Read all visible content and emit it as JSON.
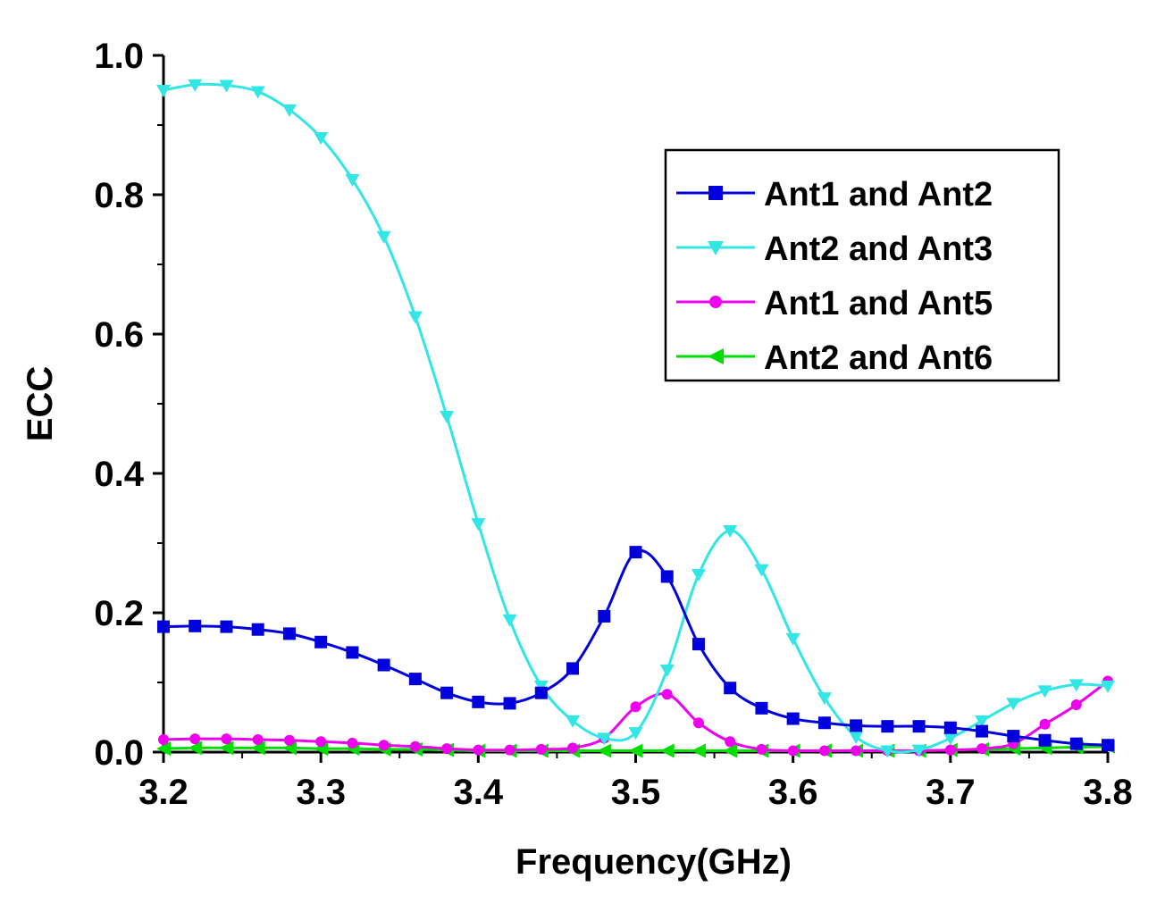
{
  "chart_data": {
    "type": "line",
    "title": "",
    "xlabel": "Frequency(GHz)",
    "ylabel": "ECC",
    "xlim": [
      3.2,
      3.8
    ],
    "ylim": [
      0.0,
      1.0
    ],
    "x_ticks": [
      "3.2",
      "3.3",
      "3.4",
      "3.5",
      "3.6",
      "3.7",
      "3.8"
    ],
    "y_ticks": [
      "0.0",
      "0.2",
      "0.4",
      "0.6",
      "0.8",
      "1.0"
    ],
    "grid": false,
    "legend_position": "top-right",
    "series": [
      {
        "name": "Ant1 and Ant2",
        "color": "#0000dd",
        "marker": "square",
        "x": [
          3.2,
          3.22,
          3.24,
          3.26,
          3.28,
          3.3,
          3.32,
          3.34,
          3.36,
          3.38,
          3.4,
          3.42,
          3.44,
          3.46,
          3.48,
          3.5,
          3.52,
          3.54,
          3.56,
          3.58,
          3.6,
          3.62,
          3.64,
          3.66,
          3.68,
          3.7,
          3.72,
          3.74,
          3.76,
          3.78,
          3.8
        ],
        "values": [
          0.18,
          0.181,
          0.18,
          0.176,
          0.17,
          0.158,
          0.143,
          0.125,
          0.105,
          0.085,
          0.072,
          0.07,
          0.085,
          0.12,
          0.195,
          0.287,
          0.252,
          0.155,
          0.092,
          0.063,
          0.048,
          0.042,
          0.038,
          0.037,
          0.037,
          0.035,
          0.03,
          0.023,
          0.017,
          0.012,
          0.01
        ]
      },
      {
        "name": "Ant2 and Ant3",
        "color": "#33e6e6",
        "marker": "triangle-down",
        "x": [
          3.2,
          3.22,
          3.24,
          3.26,
          3.28,
          3.3,
          3.32,
          3.34,
          3.36,
          3.38,
          3.4,
          3.42,
          3.44,
          3.46,
          3.48,
          3.5,
          3.52,
          3.54,
          3.56,
          3.58,
          3.6,
          3.62,
          3.64,
          3.66,
          3.68,
          3.7,
          3.72,
          3.74,
          3.76,
          3.78,
          3.8
        ],
        "values": [
          0.95,
          0.958,
          0.957,
          0.948,
          0.922,
          0.882,
          0.822,
          0.74,
          0.625,
          0.482,
          0.328,
          0.19,
          0.095,
          0.045,
          0.02,
          0.028,
          0.118,
          0.255,
          0.318,
          0.262,
          0.163,
          0.078,
          0.022,
          0.002,
          0.003,
          0.02,
          0.045,
          0.07,
          0.088,
          0.097,
          0.095
        ]
      },
      {
        "name": "Ant1 and Ant5",
        "color": "#ee00ee",
        "marker": "circle",
        "x": [
          3.2,
          3.22,
          3.24,
          3.26,
          3.28,
          3.3,
          3.32,
          3.34,
          3.36,
          3.38,
          3.4,
          3.42,
          3.44,
          3.46,
          3.48,
          3.5,
          3.52,
          3.54,
          3.56,
          3.58,
          3.6,
          3.62,
          3.64,
          3.66,
          3.68,
          3.7,
          3.72,
          3.74,
          3.76,
          3.78,
          3.8
        ],
        "values": [
          0.018,
          0.019,
          0.019,
          0.018,
          0.017,
          0.015,
          0.013,
          0.01,
          0.008,
          0.005,
          0.003,
          0.003,
          0.004,
          0.006,
          0.02,
          0.065,
          0.083,
          0.042,
          0.015,
          0.004,
          0.002,
          0.002,
          0.002,
          0.002,
          0.002,
          0.003,
          0.005,
          0.012,
          0.04,
          0.068,
          0.102
        ]
      },
      {
        "name": "Ant2 and Ant6",
        "color": "#00dd00",
        "marker": "triangle-left",
        "x": [
          3.2,
          3.22,
          3.24,
          3.26,
          3.28,
          3.3,
          3.32,
          3.34,
          3.36,
          3.38,
          3.4,
          3.42,
          3.44,
          3.46,
          3.48,
          3.5,
          3.52,
          3.54,
          3.56,
          3.58,
          3.6,
          3.62,
          3.64,
          3.66,
          3.68,
          3.7,
          3.72,
          3.74,
          3.76,
          3.78,
          3.8
        ],
        "values": [
          0.005,
          0.006,
          0.006,
          0.006,
          0.006,
          0.005,
          0.005,
          0.004,
          0.004,
          0.003,
          0.002,
          0.002,
          0.002,
          0.002,
          0.002,
          0.002,
          0.002,
          0.002,
          0.002,
          0.002,
          0.002,
          0.002,
          0.002,
          0.002,
          0.002,
          0.003,
          0.004,
          0.005,
          0.006,
          0.007,
          0.008
        ]
      }
    ]
  }
}
